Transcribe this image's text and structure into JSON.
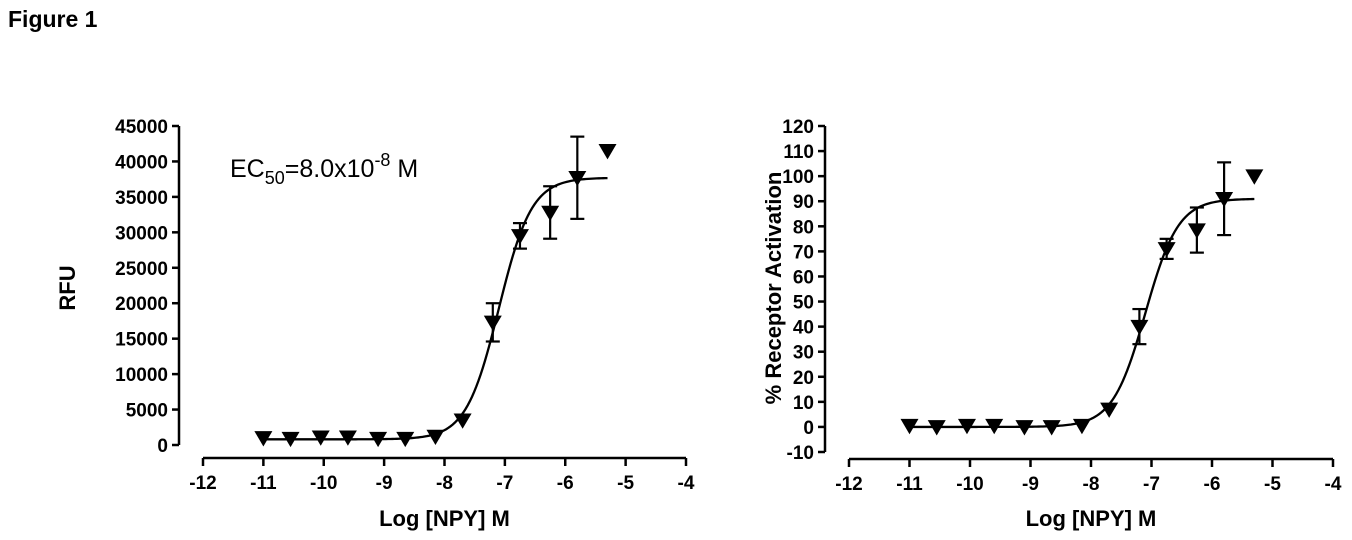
{
  "figure_title": "Figure 1",
  "chart_data": [
    {
      "type": "scatter",
      "xlabel": "Log [NPY] M",
      "ylabel": "RFU",
      "xlim": [
        -12,
        -4
      ],
      "ylim": [
        0,
        45000
      ],
      "xticks": [
        "-12",
        "-11",
        "-10",
        "-9",
        "-8",
        "-7",
        "-6",
        "-5",
        "-4"
      ],
      "yticks": [
        "0",
        "5000",
        "10000",
        "15000",
        "20000",
        "25000",
        "30000",
        "35000",
        "40000",
        "45000"
      ],
      "annotation": {
        "prefix": "EC",
        "sub": "50",
        "mid": "=8.0x10",
        "sup": "-8",
        "suffix": " M"
      },
      "points": [
        {
          "x": -11.0,
          "y": 1000
        },
        {
          "x": -10.55,
          "y": 900
        },
        {
          "x": -10.05,
          "y": 1100
        },
        {
          "x": -9.6,
          "y": 1100
        },
        {
          "x": -9.1,
          "y": 900
        },
        {
          "x": -8.65,
          "y": 900
        },
        {
          "x": -8.15,
          "y": 1200
        },
        {
          "x": -7.7,
          "y": 3500
        },
        {
          "x": -7.2,
          "y": 17300,
          "err": 2700
        },
        {
          "x": -6.75,
          "y": 29500,
          "err": 1800
        },
        {
          "x": -6.25,
          "y": 32800,
          "err": 3700
        },
        {
          "x": -5.8,
          "y": 37700,
          "err": 5800
        },
        {
          "x": -5.3,
          "y": 41500
        }
      ],
      "fit": {
        "bottom": 800,
        "top": 37700,
        "logEC50": -7.1,
        "hill": 1.6,
        "x_range": [
          -11.0,
          -5.3
        ]
      }
    },
    {
      "type": "scatter",
      "xlabel": "Log [NPY] M",
      "ylabel": "% Receptor Activation",
      "xlim": [
        -12,
        -4
      ],
      "ylim": [
        -10,
        120
      ],
      "xticks": [
        "-12",
        "-11",
        "-10",
        "-9",
        "-8",
        "-7",
        "-6",
        "-5",
        "-4"
      ],
      "yticks": [
        "-10",
        "0",
        "10",
        "20",
        "30",
        "40",
        "50",
        "60",
        "70",
        "80",
        "90",
        "100",
        "110",
        "120"
      ],
      "points": [
        {
          "x": -11.0,
          "y": 0.5
        },
        {
          "x": -10.55,
          "y": 0
        },
        {
          "x": -10.05,
          "y": 0.5
        },
        {
          "x": -9.6,
          "y": 0.5
        },
        {
          "x": -9.1,
          "y": 0
        },
        {
          "x": -8.65,
          "y": 0
        },
        {
          "x": -8.15,
          "y": 0.5
        },
        {
          "x": -7.7,
          "y": 7
        },
        {
          "x": -7.2,
          "y": 40,
          "err": 7
        },
        {
          "x": -6.75,
          "y": 71,
          "err": 4
        },
        {
          "x": -6.25,
          "y": 78.5,
          "err": 9
        },
        {
          "x": -5.8,
          "y": 91,
          "err": 14.5
        },
        {
          "x": -5.3,
          "y": 100
        }
      ],
      "fit": {
        "bottom": 0,
        "top": 91,
        "logEC50": -7.1,
        "hill": 1.6,
        "x_range": [
          -11.0,
          -5.3
        ]
      }
    }
  ]
}
